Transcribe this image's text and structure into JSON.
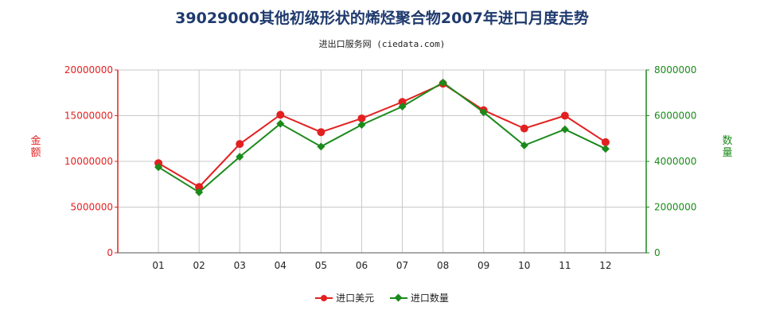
{
  "title": "39029000其他初级形状的烯烃聚合物2007年进口月度走势",
  "subtitle": "进出口服务网 (ciedata.com)",
  "colors": {
    "left": "#e32020",
    "right": "#1b8a1b",
    "grid": "#c8c8c8"
  },
  "chart_data": {
    "type": "line",
    "title": "39029000其他初级形状的烯烃聚合物2007年进口月度走势",
    "categories": [
      "01",
      "02",
      "03",
      "04",
      "05",
      "06",
      "07",
      "08",
      "09",
      "10",
      "11",
      "12"
    ],
    "left_axis": {
      "label": "金额",
      "ylim": [
        0,
        20000000
      ],
      "ticks": [
        "0",
        "5000000",
        "10000000",
        "15000000",
        "20000000"
      ]
    },
    "right_axis": {
      "label": "数量",
      "ylim": [
        0,
        8000000
      ],
      "ticks": [
        "0",
        "2000000",
        "4000000",
        "6000000",
        "8000000"
      ]
    },
    "series": [
      {
        "name": "进口美元",
        "axis": "left",
        "color": "#e32020",
        "marker": "circle",
        "values": [
          9800000,
          7200000,
          11900000,
          15100000,
          13200000,
          14700000,
          16500000,
          18500000,
          15600000,
          13600000,
          15000000,
          12100000
        ]
      },
      {
        "name": "进口数量",
        "axis": "right",
        "color": "#1b8a1b",
        "marker": "diamond",
        "values": [
          3750000,
          2650000,
          4200000,
          5650000,
          4650000,
          5600000,
          6400000,
          7450000,
          6150000,
          4700000,
          5400000,
          4550000
        ]
      }
    ],
    "grid": true,
    "legend_position": "bottom"
  }
}
